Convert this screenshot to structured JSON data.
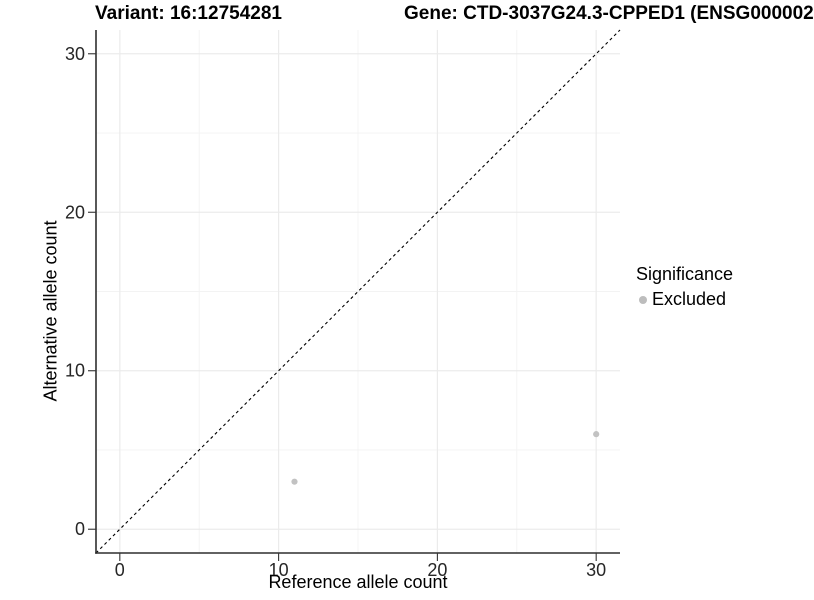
{
  "chart_data": {
    "type": "scatter",
    "title_left": "Variant: 16:12754281",
    "title_right": "Gene: CTD-3037G24.3-CPPED1 (ENSG000002",
    "xlabel": "Reference allele count",
    "ylabel": "Alternative allele count",
    "xlim": [
      -1.5,
      31.5
    ],
    "ylim": [
      -1.5,
      31.5
    ],
    "xticks": [
      0,
      10,
      20,
      30
    ],
    "yticks": [
      0,
      10,
      20,
      30
    ],
    "x_minor_ticks": [
      5,
      15,
      25
    ],
    "y_minor_ticks": [
      5,
      15,
      25
    ],
    "grid": "on",
    "reference_line": {
      "type": "identity",
      "slope": 1,
      "intercept": 0,
      "style": "dashed",
      "color": "#000000"
    },
    "series": [
      {
        "name": "Excluded",
        "color": "#c2c2c2",
        "points": [
          {
            "x": 11,
            "y": 3
          },
          {
            "x": 30,
            "y": 6
          }
        ]
      }
    ],
    "legend": {
      "position": "right",
      "title": "Significance",
      "items": [
        {
          "label": "Excluded",
          "color": "#bdbdbd",
          "marker": "circle"
        }
      ]
    },
    "colors": {
      "background": "#ffffff",
      "grid_major": "#ebebeb",
      "grid_minor": "#f3f3f3",
      "axis_line": "#2f2f2f",
      "tick_mark": "#333333",
      "tick_label": "#262626",
      "point": "#c2c2c2"
    }
  }
}
